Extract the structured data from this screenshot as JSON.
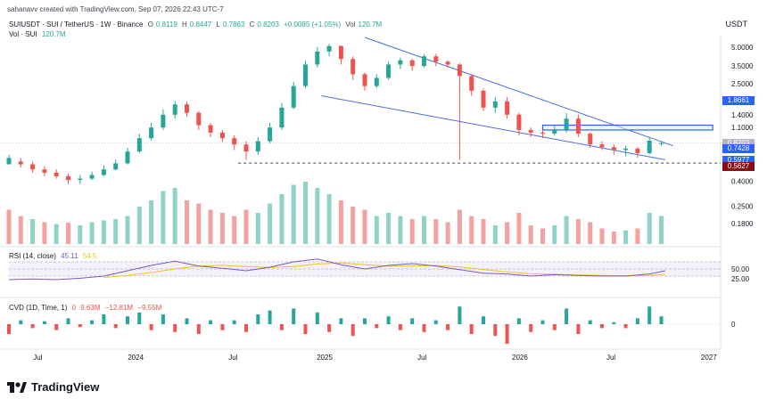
{
  "header": {
    "author_line": "sahanavv created with TradingView.com, Sep 07, 2026 22:43 UTC-7",
    "currency": "USDT"
  },
  "legend": {
    "symbol": "SUIUSDT · SUI / TetherUS · 1W · Binance",
    "o_label": "O",
    "o": "0.8119",
    "h_label": "H",
    "h": "0.8447",
    "l_label": "L",
    "l": "0.7863",
    "c_label": "C",
    "c": "0.8203",
    "change": "+0.0085 (+1.05%)",
    "vol_label": "Vol",
    "vol": "120.7M",
    "vol_sui": "Vol · SUI",
    "vol_sui_value": "120.7M"
  },
  "rsi": {
    "title": "RSI (14, close)",
    "value": "45.11",
    "value2": "54.5",
    "levels": [
      "50.00",
      "25.00"
    ]
  },
  "cvd": {
    "title": "CVD (1D, Time, 1)",
    "v1": "0",
    "v2": "9.63M",
    "v3": "−12.81M",
    "v4": "−9.55M",
    "zero": "0"
  },
  "price_tags": [
    {
      "label": "1.8661",
      "color": "#2962ff"
    },
    {
      "label": "0.8203",
      "color": "#b2b5be"
    },
    {
      "label": "0.7428",
      "color": "#2962ff"
    },
    {
      "label": "0.5977",
      "color": "#2962ff"
    },
    {
      "label": "0.5627",
      "color": "#880e14"
    }
  ],
  "brand": {
    "name": "TradingView"
  },
  "chart_data": {
    "type": "candlestick",
    "y_scale": "log",
    "y_ticks": [
      "5.0000",
      "3.5000",
      "2.5000",
      "1.8661",
      "1.4000",
      "1.1000",
      "0.8203",
      "0.7428",
      "0.5977",
      "0.5627",
      "0.4000",
      "0.2500",
      "0.1800"
    ],
    "y_tick_values": [
      5.0,
      3.5,
      2.5,
      1.4,
      1.1,
      0.4,
      0.25,
      0.18
    ],
    "x_ticks": [
      "Jul",
      "2024",
      "Jul",
      "2025",
      "Jul",
      "2026",
      "Jul",
      "2027"
    ],
    "price_candles": [
      [
        0.0,
        0.55,
        0.62,
        0.58,
        0.66
      ],
      [
        0.3,
        0.58,
        0.55,
        0.52,
        0.62
      ],
      [
        0.6,
        0.55,
        0.5,
        0.47,
        0.58
      ],
      [
        0.9,
        0.5,
        0.47,
        0.44,
        0.53
      ],
      [
        1.2,
        0.47,
        0.44,
        0.42,
        0.5
      ],
      [
        1.5,
        0.44,
        0.41,
        0.38,
        0.46
      ],
      [
        1.8,
        0.41,
        0.42,
        0.38,
        0.45
      ],
      [
        2.1,
        0.42,
        0.45,
        0.41,
        0.48
      ],
      [
        2.4,
        0.45,
        0.5,
        0.44,
        0.54
      ],
      [
        2.7,
        0.5,
        0.56,
        0.49,
        0.6
      ],
      [
        3.0,
        0.56,
        0.7,
        0.55,
        0.75
      ],
      [
        3.3,
        0.7,
        0.9,
        0.68,
        0.98
      ],
      [
        3.6,
        0.9,
        1.1,
        0.86,
        1.2
      ],
      [
        3.9,
        1.1,
        1.4,
        1.05,
        1.55
      ],
      [
        4.2,
        1.4,
        1.7,
        1.3,
        1.8
      ],
      [
        4.5,
        1.7,
        1.45,
        1.35,
        1.8
      ],
      [
        4.8,
        1.45,
        1.15,
        1.05,
        1.5
      ],
      [
        5.1,
        1.15,
        1.0,
        0.92,
        1.2
      ],
      [
        5.4,
        1.0,
        0.9,
        0.84,
        1.05
      ],
      [
        5.7,
        0.9,
        0.8,
        0.72,
        0.95
      ],
      [
        6.0,
        0.8,
        0.7,
        0.6,
        0.85
      ],
      [
        6.3,
        0.7,
        0.85,
        0.66,
        0.92
      ],
      [
        6.6,
        0.85,
        1.1,
        0.82,
        1.2
      ],
      [
        6.9,
        1.1,
        1.6,
        1.05,
        1.75
      ],
      [
        7.2,
        1.6,
        2.4,
        1.55,
        2.6
      ],
      [
        7.5,
        2.4,
        3.6,
        2.3,
        3.9
      ],
      [
        7.8,
        3.6,
        4.6,
        3.4,
        5.0
      ],
      [
        8.1,
        4.6,
        5.1,
        4.2,
        5.3
      ],
      [
        8.4,
        5.1,
        4.0,
        3.6,
        5.2
      ],
      [
        8.7,
        4.0,
        3.0,
        2.7,
        4.2
      ],
      [
        9.0,
        3.0,
        2.4,
        2.2,
        3.1
      ],
      [
        9.3,
        2.4,
        2.8,
        2.3,
        3.0
      ],
      [
        9.6,
        2.8,
        3.6,
        2.7,
        3.8
      ],
      [
        9.9,
        3.6,
        3.9,
        3.3,
        4.1
      ],
      [
        10.2,
        3.9,
        3.5,
        3.2,
        4.0
      ],
      [
        10.5,
        3.5,
        4.2,
        3.4,
        4.4
      ],
      [
        10.8,
        4.2,
        3.8,
        3.5,
        4.4
      ],
      [
        11.1,
        3.8,
        3.6,
        3.4,
        3.9
      ],
      [
        11.4,
        3.6,
        2.9,
        0.6,
        3.7
      ],
      [
        11.7,
        2.9,
        2.2,
        2.0,
        3.0
      ],
      [
        12.0,
        2.2,
        1.6,
        1.5,
        2.3
      ],
      [
        12.3,
        1.6,
        1.8,
        1.45,
        1.95
      ],
      [
        12.6,
        1.8,
        1.4,
        1.3,
        1.95
      ],
      [
        12.9,
        1.4,
        1.05,
        0.95,
        1.45
      ],
      [
        13.2,
        1.05,
        1.0,
        0.92,
        1.1
      ],
      [
        13.5,
        1.0,
        0.98,
        0.9,
        1.05
      ],
      [
        13.8,
        0.98,
        1.05,
        0.94,
        1.15
      ],
      [
        14.1,
        1.05,
        1.3,
        1.0,
        1.45
      ],
      [
        14.4,
        1.3,
        0.98,
        0.92,
        1.4
      ],
      [
        14.7,
        0.98,
        0.8,
        0.75,
        1.0
      ],
      [
        15.0,
        0.8,
        0.76,
        0.72,
        0.85
      ],
      [
        15.3,
        0.76,
        0.72,
        0.66,
        0.8
      ],
      [
        15.6,
        0.72,
        0.74,
        0.64,
        0.78
      ],
      [
        15.9,
        0.74,
        0.68,
        0.62,
        0.76
      ],
      [
        16.2,
        0.68,
        0.86,
        0.66,
        0.92
      ],
      [
        16.5,
        0.81,
        0.82,
        0.78,
        0.84
      ]
    ],
    "volume": [
      [
        0.0,
        0.55,
        false
      ],
      [
        0.3,
        0.45,
        false
      ],
      [
        0.6,
        0.4,
        true
      ],
      [
        0.9,
        0.35,
        false
      ],
      [
        1.2,
        0.32,
        true
      ],
      [
        1.5,
        0.34,
        false
      ],
      [
        1.8,
        0.3,
        true
      ],
      [
        2.1,
        0.35,
        true
      ],
      [
        2.4,
        0.38,
        true
      ],
      [
        2.7,
        0.4,
        true
      ],
      [
        3.0,
        0.45,
        true
      ],
      [
        3.3,
        0.6,
        true
      ],
      [
        3.6,
        0.7,
        true
      ],
      [
        3.9,
        0.85,
        true
      ],
      [
        4.2,
        0.9,
        true
      ],
      [
        4.5,
        0.7,
        false
      ],
      [
        4.8,
        0.65,
        false
      ],
      [
        5.1,
        0.55,
        false
      ],
      [
        5.4,
        0.5,
        false
      ],
      [
        5.7,
        0.45,
        false
      ],
      [
        6.0,
        0.55,
        false
      ],
      [
        6.3,
        0.5,
        true
      ],
      [
        6.6,
        0.65,
        true
      ],
      [
        6.9,
        0.8,
        true
      ],
      [
        7.2,
        0.95,
        true
      ],
      [
        7.5,
        1.0,
        true
      ],
      [
        7.8,
        0.9,
        true
      ],
      [
        8.1,
        0.8,
        true
      ],
      [
        8.4,
        0.7,
        false
      ],
      [
        8.7,
        0.6,
        false
      ],
      [
        9.0,
        0.55,
        false
      ],
      [
        9.3,
        0.45,
        true
      ],
      [
        9.6,
        0.5,
        true
      ],
      [
        9.9,
        0.45,
        true
      ],
      [
        10.2,
        0.4,
        false
      ],
      [
        10.5,
        0.45,
        true
      ],
      [
        10.8,
        0.4,
        false
      ],
      [
        11.1,
        0.35,
        false
      ],
      [
        11.4,
        0.55,
        false
      ],
      [
        11.7,
        0.45,
        false
      ],
      [
        12.0,
        0.4,
        false
      ],
      [
        12.3,
        0.3,
        true
      ],
      [
        12.6,
        0.35,
        false
      ],
      [
        12.9,
        0.5,
        false
      ],
      [
        13.2,
        0.3,
        false
      ],
      [
        13.5,
        0.25,
        false
      ],
      [
        13.8,
        0.3,
        true
      ],
      [
        14.1,
        0.45,
        true
      ],
      [
        14.4,
        0.4,
        false
      ],
      [
        14.7,
        0.35,
        false
      ],
      [
        15.0,
        0.25,
        false
      ],
      [
        15.3,
        0.2,
        false
      ],
      [
        15.6,
        0.22,
        true
      ],
      [
        15.9,
        0.25,
        false
      ],
      [
        16.2,
        0.5,
        true
      ],
      [
        16.5,
        0.45,
        true
      ]
    ],
    "rsi_line": [
      [
        0.0,
        20
      ],
      [
        0.6,
        22
      ],
      [
        1.2,
        20
      ],
      [
        1.8,
        24
      ],
      [
        2.4,
        30
      ],
      [
        3.0,
        45
      ],
      [
        3.6,
        60
      ],
      [
        4.2,
        72
      ],
      [
        4.8,
        58
      ],
      [
        5.4,
        52
      ],
      [
        6.0,
        45
      ],
      [
        6.6,
        55
      ],
      [
        7.2,
        70
      ],
      [
        7.8,
        78
      ],
      [
        8.4,
        62
      ],
      [
        9.0,
        50
      ],
      [
        9.6,
        60
      ],
      [
        10.2,
        65
      ],
      [
        10.8,
        58
      ],
      [
        11.4,
        48
      ],
      [
        12.0,
        38
      ],
      [
        12.6,
        36
      ],
      [
        13.2,
        30
      ],
      [
        13.8,
        34
      ],
      [
        14.4,
        32
      ],
      [
        15.0,
        30
      ],
      [
        15.6,
        30
      ],
      [
        16.2,
        36
      ],
      [
        16.6,
        45
      ]
    ],
    "rsi_ma": [
      [
        2.4,
        26
      ],
      [
        3.0,
        32
      ],
      [
        3.6,
        40
      ],
      [
        4.2,
        50
      ],
      [
        4.8,
        58
      ],
      [
        5.4,
        60
      ],
      [
        6.0,
        57
      ],
      [
        6.6,
        54
      ],
      [
        7.2,
        57
      ],
      [
        7.8,
        64
      ],
      [
        8.4,
        67
      ],
      [
        9.0,
        62
      ],
      [
        9.6,
        58
      ],
      [
        10.2,
        58
      ],
      [
        10.8,
        60
      ],
      [
        11.4,
        56
      ],
      [
        12.0,
        48
      ],
      [
        12.6,
        42
      ],
      [
        13.2,
        37
      ],
      [
        13.8,
        35
      ],
      [
        14.4,
        33
      ],
      [
        15.0,
        32
      ],
      [
        15.6,
        31
      ],
      [
        16.2,
        32
      ],
      [
        16.6,
        35
      ]
    ],
    "cvd_bars": [
      [
        0.0,
        -0.5
      ],
      [
        0.3,
        0.2
      ],
      [
        0.6,
        -0.2
      ],
      [
        0.9,
        0.15
      ],
      [
        1.2,
        -0.3
      ],
      [
        1.5,
        0.3
      ],
      [
        1.8,
        -0.15
      ],
      [
        2.1,
        0.2
      ],
      [
        2.4,
        0.5
      ],
      [
        2.7,
        -0.2
      ],
      [
        3.0,
        0.4
      ],
      [
        3.3,
        0.6
      ],
      [
        3.6,
        -0.3
      ],
      [
        3.9,
        0.5
      ],
      [
        4.2,
        -0.4
      ],
      [
        4.5,
        0.3
      ],
      [
        4.8,
        -0.5
      ],
      [
        5.1,
        0.2
      ],
      [
        5.4,
        -0.3
      ],
      [
        5.7,
        0.2
      ],
      [
        6.0,
        -0.4
      ],
      [
        6.3,
        0.5
      ],
      [
        6.6,
        0.7
      ],
      [
        6.9,
        -0.3
      ],
      [
        7.2,
        0.8
      ],
      [
        7.5,
        -0.5
      ],
      [
        7.8,
        0.6
      ],
      [
        8.1,
        -0.4
      ],
      [
        8.4,
        0.3
      ],
      [
        8.7,
        -0.6
      ],
      [
        9.0,
        0.3
      ],
      [
        9.3,
        -0.2
      ],
      [
        9.6,
        0.4
      ],
      [
        9.9,
        -0.3
      ],
      [
        10.2,
        0.3
      ],
      [
        10.5,
        -0.4
      ],
      [
        10.8,
        0.2
      ],
      [
        11.1,
        -0.3
      ],
      [
        11.4,
        0.9
      ],
      [
        11.7,
        -0.5
      ],
      [
        12.0,
        0.4
      ],
      [
        12.3,
        -0.6
      ],
      [
        12.6,
        -1.0
      ],
      [
        12.9,
        0.3
      ],
      [
        13.2,
        -0.4
      ],
      [
        13.5,
        0.2
      ],
      [
        13.8,
        -0.3
      ],
      [
        14.1,
        0.8
      ],
      [
        14.4,
        -0.5
      ],
      [
        14.7,
        0.2
      ],
      [
        15.0,
        -0.2
      ],
      [
        15.3,
        0.1
      ],
      [
        15.6,
        -0.2
      ],
      [
        15.9,
        0.3
      ],
      [
        16.2,
        0.9
      ],
      [
        16.5,
        0.4
      ]
    ],
    "colors": {
      "up": "#26a69a",
      "down": "#ef5350",
      "volume_up": "#8fd3c6",
      "volume_down": "#f2a2a1",
      "trend": "#4a6fdc",
      "rsi": "#7e57c2",
      "rsi_ma": "#f0c419",
      "rsi_band": "#ede7f6",
      "box": "#2962ff"
    }
  }
}
